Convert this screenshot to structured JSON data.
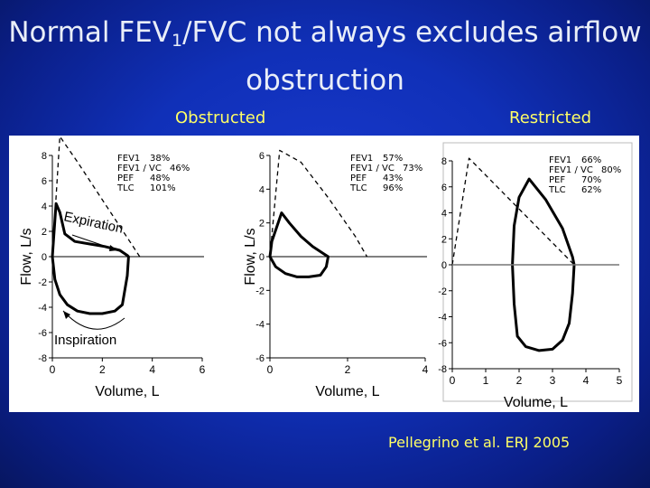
{
  "slide": {
    "title_pre": "Normal FEV",
    "title_sub": "1",
    "title_post": "/FVC not always excludes airflow obstruction",
    "label_left": "Obstructed",
    "label_right": "Restricted",
    "citation": "Pellegrino et al. ERJ 2005"
  },
  "colors": {
    "background": "#1030b8",
    "labels": "#ffff66",
    "title": "#e9eef8"
  },
  "chart_data": [
    {
      "type": "line",
      "panel": "Obstructed",
      "xlabel": "Volume, L",
      "ylabel": "Flow, L/s",
      "xlim": [
        0,
        6
      ],
      "ylim": [
        -8,
        8
      ],
      "xticks": [
        "0",
        "2",
        "4",
        "6"
      ],
      "yticks": [
        "8",
        "6",
        "4",
        "2",
        "0",
        "-2",
        "-4",
        "-6",
        "-8"
      ],
      "stats": [
        {
          "label": "FEV1",
          "value": "38%"
        },
        {
          "label": "FEV1 / VC",
          "value": "46%"
        },
        {
          "label": "PEF",
          "value": "48%"
        },
        {
          "label": "TLC",
          "value": "101%"
        }
      ],
      "annotations": [
        "Expiration",
        "Inspiration"
      ],
      "series": [
        {
          "style": "solid",
          "x": [
            0,
            0.15,
            0.3,
            0.5,
            0.9,
            1.5,
            2.1,
            2.7,
            3.0,
            3.05,
            3.0,
            2.8,
            2.5,
            2.0,
            1.5,
            1.0,
            0.6,
            0.3,
            0.1,
            0
          ],
          "y": [
            0,
            4.2,
            3.5,
            1.8,
            1.2,
            1.0,
            0.8,
            0.5,
            0.1,
            0,
            -1.5,
            -3.8,
            -4.3,
            -4.5,
            -4.5,
            -4.3,
            -3.8,
            -3.0,
            -1.8,
            0
          ]
        },
        {
          "style": "dashed",
          "x": [
            0,
            0.3,
            1.0,
            2.0,
            3.0,
            3.5
          ],
          "y": [
            0,
            9.5,
            7.5,
            4.5,
            1.5,
            0
          ]
        }
      ]
    },
    {
      "type": "line",
      "panel": "",
      "xlabel": "Volume, L",
      "ylabel": "Flow, L/s",
      "xlim": [
        0,
        4
      ],
      "ylim": [
        -6,
        6
      ],
      "xticks": [
        "0",
        "2",
        "4"
      ],
      "yticks": [
        "6",
        "4",
        "2",
        "0",
        "-2",
        "-4",
        "-6"
      ],
      "stats": [
        {
          "label": "FEV1",
          "value": "57%"
        },
        {
          "label": "FEV1 / VC",
          "value": "73%"
        },
        {
          "label": "PEF",
          "value": "43%"
        },
        {
          "label": "TLC",
          "value": "96%"
        }
      ],
      "annotations": [],
      "series": [
        {
          "style": "solid",
          "x": [
            0,
            0.05,
            0.3,
            0.5,
            0.8,
            1.1,
            1.4,
            1.5,
            1.45,
            1.3,
            1.0,
            0.7,
            0.4,
            0.15,
            0
          ],
          "y": [
            0,
            0.9,
            2.6,
            2.0,
            1.2,
            0.6,
            0.15,
            0,
            -0.6,
            -1.1,
            -1.2,
            -1.2,
            -1.0,
            -0.6,
            0
          ]
        },
        {
          "style": "dashed",
          "x": [
            0,
            0.25,
            0.8,
            1.5,
            2.2,
            2.5
          ],
          "y": [
            0,
            6.3,
            5.6,
            3.5,
            1.2,
            0
          ]
        }
      ]
    },
    {
      "type": "line",
      "panel": "Restricted",
      "xlabel": "Volume, L",
      "ylabel": "",
      "xlim": [
        0,
        5
      ],
      "ylim": [
        -8,
        8
      ],
      "xticks": [
        "0",
        "1",
        "2",
        "3",
        "4",
        "5"
      ],
      "yticks": [
        "8",
        "6",
        "4",
        "2",
        "0",
        "-2",
        "-4",
        "-6",
        "-8"
      ],
      "stats": [
        {
          "label": "FEV1",
          "value": "66%"
        },
        {
          "label": "FEV1 / VC",
          "value": "80%"
        },
        {
          "label": "PEF",
          "value": "70%"
        },
        {
          "label": "TLC",
          "value": "62%"
        }
      ],
      "annotations": [],
      "series": [
        {
          "style": "solid",
          "x": [
            1.8,
            1.85,
            2.0,
            2.3,
            2.8,
            3.3,
            3.6,
            3.65,
            3.6,
            3.5,
            3.3,
            3.0,
            2.6,
            2.2,
            1.95,
            1.85,
            1.8
          ],
          "y": [
            0,
            3.0,
            5.2,
            6.6,
            5.0,
            2.8,
            0.6,
            0,
            -2.2,
            -4.5,
            -5.8,
            -6.5,
            -6.6,
            -6.3,
            -5.5,
            -3.0,
            0
          ]
        },
        {
          "style": "dashed",
          "x": [
            0,
            0.5,
            3.65
          ],
          "y": [
            0,
            8.2,
            0
          ]
        },
        {
          "style": "gray-baseline",
          "x": [
            0,
            5
          ],
          "y": [
            0,
            0
          ]
        }
      ]
    }
  ]
}
